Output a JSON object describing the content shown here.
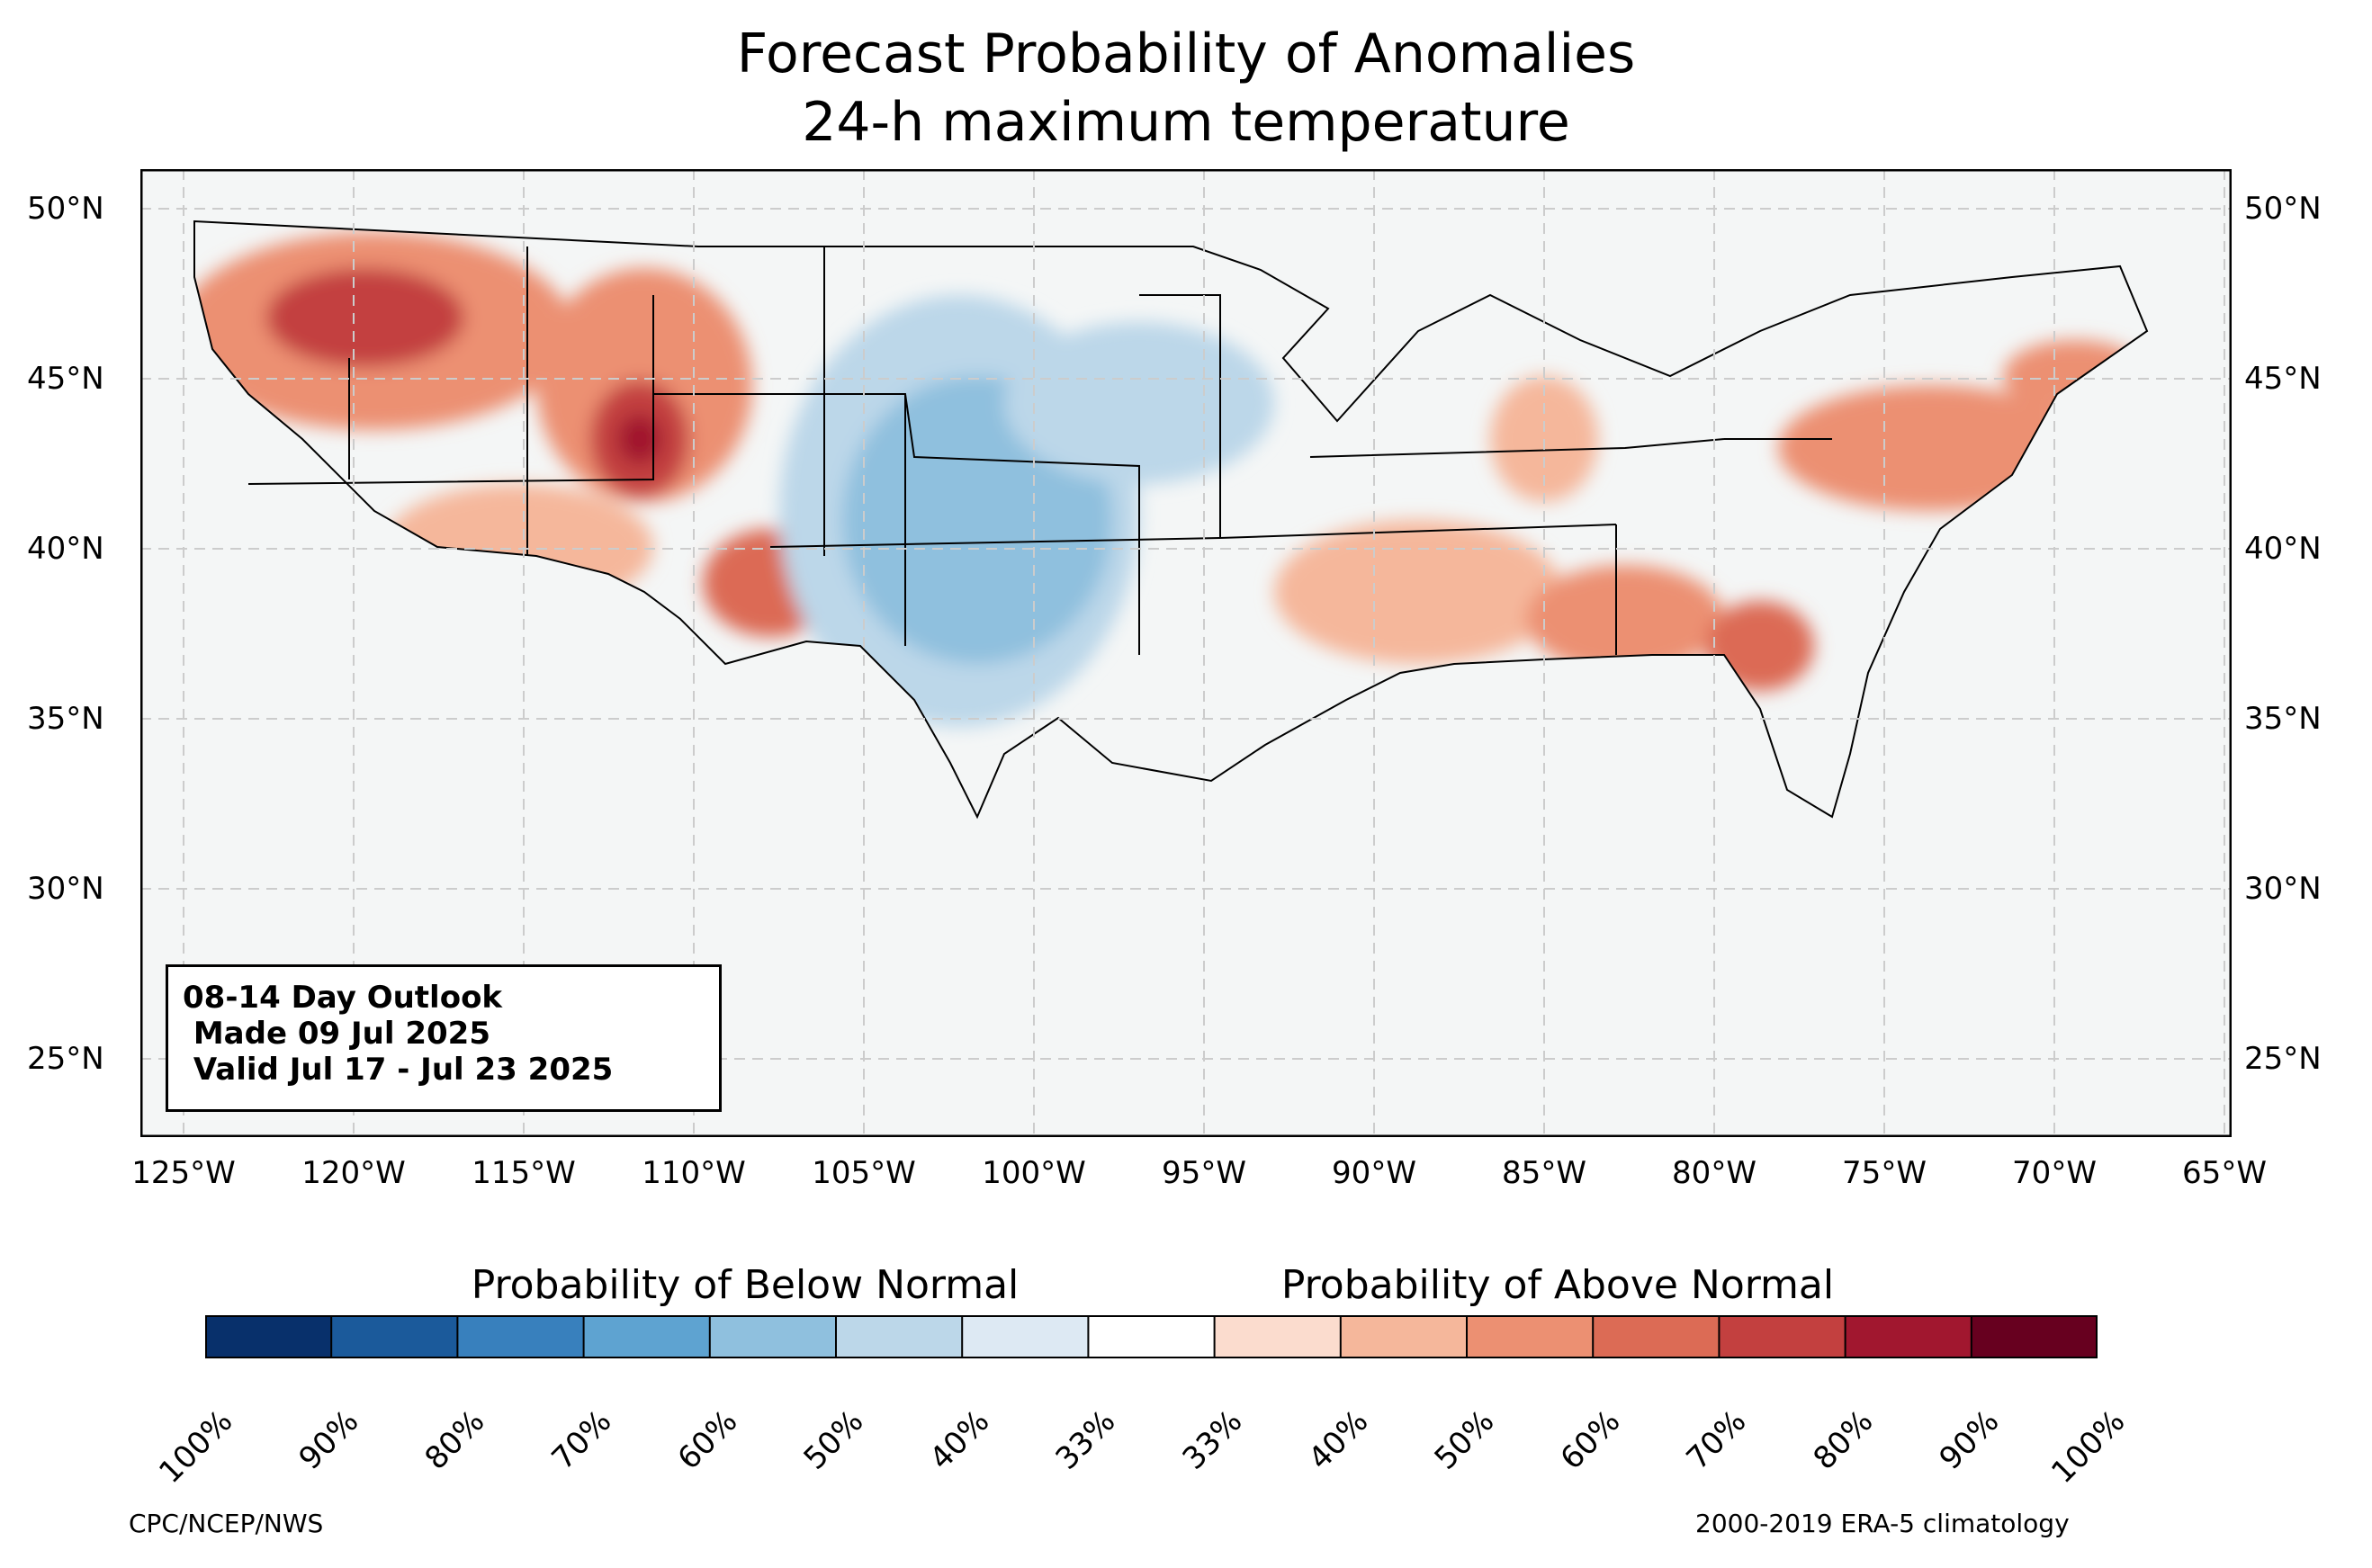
{
  "title": {
    "line1": "Forecast Probability of Anomalies",
    "line2": "24-h maximum temperature"
  },
  "map": {
    "lat_labels": [
      "50°N",
      "45°N",
      "40°N",
      "35°N",
      "30°N",
      "25°N"
    ],
    "lon_labels": [
      "125°W",
      "120°W",
      "115°W",
      "110°W",
      "105°W",
      "100°W",
      "95°W",
      "90°W",
      "85°W",
      "80°W",
      "75°W",
      "70°W",
      "65°W"
    ],
    "info_box": {
      "line1": "08-14 Day Outlook",
      "line2": " Made 09 Jul 2025",
      "line3": " Valid Jul 17 - Jul 23 2025"
    },
    "colors": {
      "land": "#f4f6f6",
      "border": "#000000",
      "grid": "#cccccc"
    }
  },
  "colorbar": {
    "below_title": "Probability of Below Normal",
    "above_title": "Probability of Above Normal",
    "tick_labels": [
      "100%",
      "90%",
      "80%",
      "70%",
      "60%",
      "50%",
      "40%",
      "33%",
      "33%",
      "40%",
      "50%",
      "60%",
      "70%",
      "80%",
      "90%",
      "100%"
    ],
    "colors": [
      "#08306b",
      "#1b5a9b",
      "#3880bd",
      "#5ea3d1",
      "#8fc0de",
      "#bcd7e9",
      "#dde9f3",
      "#ffffff",
      "#fbdcce",
      "#f5b79b",
      "#ec9072",
      "#dc6b55",
      "#c3403f",
      "#a1172f",
      "#67001f"
    ]
  },
  "footer": {
    "left": "CPC/NCEP/NWS",
    "right": "2000-2019 ERA-5 climatology"
  }
}
